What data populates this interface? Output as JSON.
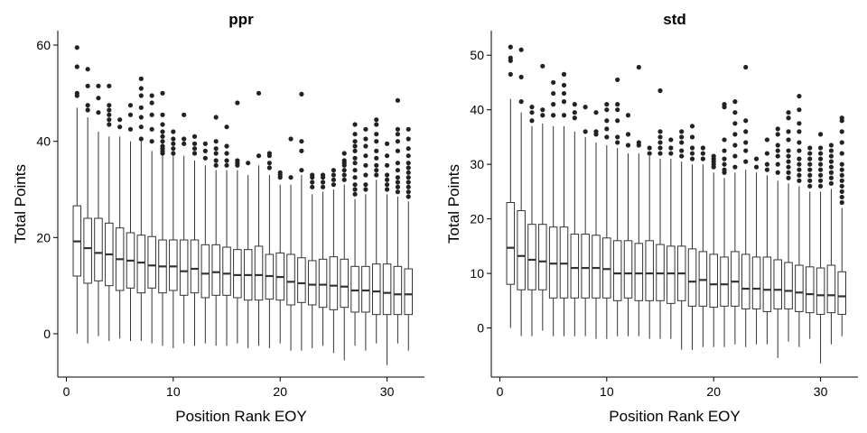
{
  "chart_data": [
    {
      "type": "boxplot",
      "title": "ppr",
      "xlabel": "Position Rank EOY",
      "ylabel": "Total Points",
      "xlim": [
        -0.8,
        33.5
      ],
      "ylim": [
        -9,
        63
      ],
      "xticks": [
        "0",
        "10",
        "20",
        "30"
      ],
      "xtick_values": [
        0,
        10,
        20,
        30
      ],
      "yticks": [
        "0",
        "20",
        "40",
        "60"
      ],
      "ytick_values": [
        0,
        20,
        40,
        60
      ],
      "grid": false,
      "boxes": [
        {
          "x": 1,
          "min": 0,
          "q1": 12,
          "median": 19.2,
          "q3": 26.6,
          "max": 47,
          "outliers": [
            49.5,
            50,
            55.5,
            59.5
          ]
        },
        {
          "x": 2,
          "min": -2,
          "q1": 10.5,
          "median": 17.8,
          "q3": 24,
          "max": 45,
          "outliers": [
            46.5,
            47.5,
            51.5,
            55
          ]
        },
        {
          "x": 3,
          "min": -0.5,
          "q1": 11,
          "median": 16.8,
          "q3": 24,
          "max": 42,
          "outliers": [
            46,
            49,
            51.5
          ]
        },
        {
          "x": 4,
          "min": -1.5,
          "q1": 10,
          "median": 16.5,
          "q3": 23,
          "max": 41,
          "outliers": [
            43.5,
            44.5,
            45.5,
            46.5,
            47.5,
            51.5
          ]
        },
        {
          "x": 5,
          "min": -1,
          "q1": 9,
          "median": 15.5,
          "q3": 22,
          "max": 41,
          "outliers": [
            43,
            44.5
          ]
        },
        {
          "x": 6,
          "min": -1.5,
          "q1": 9.5,
          "median": 15.2,
          "q3": 21,
          "max": 40,
          "outliers": [
            42.5,
            45.5,
            47.5
          ]
        },
        {
          "x": 7,
          "min": -1.5,
          "q1": 8.5,
          "median": 14.8,
          "q3": 20.5,
          "max": 40,
          "outliers": [
            40.5,
            43,
            45,
            47,
            49.5,
            51,
            53
          ]
        },
        {
          "x": 8,
          "min": -2,
          "q1": 9.5,
          "median": 14.2,
          "q3": 20.2,
          "max": 38,
          "outliers": [
            40,
            42.5,
            45.5,
            48,
            49.5
          ]
        },
        {
          "x": 9,
          "min": -2.5,
          "q1": 8.5,
          "median": 14,
          "q3": 19.5,
          "max": 37,
          "outliers": [
            37.5,
            38,
            38.5,
            39,
            40,
            41,
            42,
            43.5,
            45.5,
            50
          ]
        },
        {
          "x": 10,
          "min": -3,
          "q1": 9,
          "median": 14,
          "q3": 19.5,
          "max": 37,
          "outliers": [
            37.5,
            38.5,
            39.5,
            40.5,
            42
          ]
        },
        {
          "x": 11,
          "min": -2,
          "q1": 8,
          "median": 13,
          "q3": 19.5,
          "max": 37,
          "outliers": [
            39.5,
            40.5,
            45.5
          ]
        },
        {
          "x": 12,
          "min": -2.5,
          "q1": 8.5,
          "median": 13.5,
          "q3": 19.5,
          "max": 36,
          "outliers": [
            37.5,
            38.5,
            39.5,
            41
          ]
        },
        {
          "x": 13,
          "min": -2,
          "q1": 7.5,
          "median": 12.5,
          "q3": 18.5,
          "max": 35,
          "outliers": [
            36.5,
            38,
            39.5
          ]
        },
        {
          "x": 14,
          "min": -2.5,
          "q1": 8,
          "median": 12.8,
          "q3": 18.5,
          "max": 34,
          "outliers": [
            35,
            36,
            37.5,
            38.5,
            40,
            45
          ]
        },
        {
          "x": 15,
          "min": -2.5,
          "q1": 8,
          "median": 12.5,
          "q3": 18,
          "max": 34,
          "outliers": [
            35,
            36,
            37.5,
            39,
            43
          ]
        },
        {
          "x": 16,
          "min": -2,
          "q1": 7.5,
          "median": 12.2,
          "q3": 17.5,
          "max": 34,
          "outliers": [
            35,
            35.5,
            36,
            48
          ]
        },
        {
          "x": 17,
          "min": -3,
          "q1": 7,
          "median": 12.2,
          "q3": 17.5,
          "max": 33,
          "outliers": [
            35.5
          ]
        },
        {
          "x": 18,
          "min": -2.5,
          "q1": 7,
          "median": 12.2,
          "q3": 18.2,
          "max": 35,
          "outliers": [
            37,
            50
          ]
        },
        {
          "x": 19,
          "min": -3,
          "q1": 7.2,
          "median": 12,
          "q3": 16.5,
          "max": 33,
          "outliers": [
            34.5,
            35.5,
            37,
            37.5
          ]
        },
        {
          "x": 20,
          "min": -2,
          "q1": 7,
          "median": 11.8,
          "q3": 16.8,
          "max": 31,
          "outliers": [
            32.5,
            33,
            33.5
          ]
        },
        {
          "x": 21,
          "min": -3.5,
          "q1": 6,
          "median": 10.8,
          "q3": 16.5,
          "max": 31,
          "outliers": [
            32.5,
            40.5
          ]
        },
        {
          "x": 22,
          "min": -3.5,
          "q1": 6.5,
          "median": 10.5,
          "q3": 15.8,
          "max": 33,
          "outliers": [
            34,
            38,
            40,
            49.8
          ]
        },
        {
          "x": 23,
          "min": -3,
          "q1": 6,
          "median": 10.2,
          "q3": 15.2,
          "max": 29,
          "outliers": [
            30.5,
            31.5,
            32.5,
            33
          ]
        },
        {
          "x": 24,
          "min": -2.5,
          "q1": 5.5,
          "median": 10.2,
          "q3": 15.5,
          "max": 29.5,
          "outliers": [
            30.5,
            31.5,
            32.5,
            33
          ]
        },
        {
          "x": 25,
          "min": -4,
          "q1": 5,
          "median": 10,
          "q3": 16,
          "max": 30,
          "outliers": [
            31,
            32,
            33,
            34
          ]
        },
        {
          "x": 26,
          "min": -5.5,
          "q1": 5.5,
          "median": 9.8,
          "q3": 15.5,
          "max": 31,
          "outliers": [
            32,
            33,
            34,
            35,
            35.5,
            36,
            37.5
          ]
        },
        {
          "x": 27,
          "min": -2.5,
          "q1": 4.5,
          "median": 9,
          "q3": 14,
          "max": 28,
          "outliers": [
            29,
            30,
            31,
            32.5,
            34,
            35.5,
            36.5,
            38,
            39,
            40,
            41.5,
            43.5
          ]
        },
        {
          "x": 28,
          "min": -3.5,
          "q1": 4.5,
          "median": 9,
          "q3": 14,
          "max": 29,
          "outliers": [
            30,
            31,
            33,
            35,
            37,
            39,
            40.5,
            42.5
          ]
        },
        {
          "x": 29,
          "min": -2,
          "q1": 4,
          "median": 8.8,
          "q3": 14.5,
          "max": 32,
          "outliers": [
            33,
            34,
            35,
            36.5,
            38,
            40,
            41.5,
            43.5,
            44.5
          ]
        },
        {
          "x": 30,
          "min": -6.5,
          "q1": 4,
          "median": 8.5,
          "q3": 14.5,
          "max": 29,
          "outliers": [
            30,
            31,
            32,
            33,
            35,
            37,
            39.5
          ]
        },
        {
          "x": 31,
          "min": -2,
          "q1": 4,
          "median": 8.2,
          "q3": 14,
          "max": 28.5,
          "outliers": [
            29.5,
            30.5,
            31.5,
            32.5,
            34,
            35.5,
            38,
            40,
            41.5,
            42.5,
            48.5
          ]
        },
        {
          "x": 32,
          "min": -3.5,
          "q1": 4,
          "median": 8.2,
          "q3": 13.5,
          "max": 27.5,
          "outliers": [
            28.5,
            29.5,
            30.5,
            31.5,
            32.5,
            33.5,
            34.5,
            35.5,
            37,
            38.5,
            40.5,
            42.5
          ]
        }
      ]
    },
    {
      "type": "boxplot",
      "title": "std",
      "xlabel": "Position Rank EOY",
      "ylabel": "Total Points",
      "xlim": [
        -0.8,
        33.5
      ],
      "ylim": [
        -9,
        54.5
      ],
      "xticks": [
        "0",
        "10",
        "20",
        "30"
      ],
      "xtick_values": [
        0,
        10,
        20,
        30
      ],
      "yticks": [
        "0",
        "10",
        "20",
        "30",
        "40",
        "50"
      ],
      "ytick_values": [
        0,
        10,
        20,
        30,
        40,
        50
      ],
      "grid": false,
      "boxes": [
        {
          "x": 1,
          "min": 0,
          "q1": 8,
          "median": 14.7,
          "q3": 23,
          "max": 42,
          "outliers": [
            46.5,
            49,
            49.5,
            51.5
          ]
        },
        {
          "x": 2,
          "min": -1.5,
          "q1": 7,
          "median": 13.2,
          "q3": 21.5,
          "max": 39.5,
          "outliers": [
            41.5,
            46,
            51
          ]
        },
        {
          "x": 3,
          "min": -1.5,
          "q1": 7,
          "median": 12.5,
          "q3": 19,
          "max": 37,
          "outliers": [
            38,
            39.5,
            40.5
          ]
        },
        {
          "x": 4,
          "min": -0.5,
          "q1": 7,
          "median": 12.2,
          "q3": 19,
          "max": 37.5,
          "outliers": [
            39,
            40,
            48
          ]
        },
        {
          "x": 5,
          "min": -1.5,
          "q1": 5.5,
          "median": 11.8,
          "q3": 18.5,
          "max": 37,
          "outliers": [
            39,
            41,
            43,
            45
          ]
        },
        {
          "x": 6,
          "min": -1.5,
          "q1": 5.5,
          "median": 11.8,
          "q3": 18.5,
          "max": 37,
          "outliers": [
            39,
            41.5,
            43,
            44.5,
            46.5
          ]
        },
        {
          "x": 7,
          "min": -1.5,
          "q1": 5.5,
          "median": 11,
          "q3": 17.2,
          "max": 36,
          "outliers": [
            38.5,
            39.5,
            41
          ]
        },
        {
          "x": 8,
          "min": -1.5,
          "q1": 5.5,
          "median": 11,
          "q3": 17.2,
          "max": 35,
          "outliers": [
            36,
            40.5
          ]
        },
        {
          "x": 9,
          "min": -2,
          "q1": 5.5,
          "median": 11,
          "q3": 17,
          "max": 34,
          "outliers": [
            35.5,
            36,
            39.5
          ]
        },
        {
          "x": 10,
          "min": -2,
          "q1": 5.5,
          "median": 10.8,
          "q3": 16.5,
          "max": 33.5,
          "outliers": [
            35,
            36.5,
            38,
            40,
            41
          ]
        },
        {
          "x": 11,
          "min": -1.5,
          "q1": 5,
          "median": 10,
          "q3": 16,
          "max": 33,
          "outliers": [
            34,
            35,
            38,
            40,
            41,
            45.5
          ]
        },
        {
          "x": 12,
          "min": -1.5,
          "q1": 5.5,
          "median": 10,
          "q3": 16,
          "max": 32,
          "outliers": [
            33.5,
            35.5,
            39
          ]
        },
        {
          "x": 13,
          "min": -1.5,
          "q1": 5,
          "median": 10,
          "q3": 15.5,
          "max": 32,
          "outliers": [
            33.5,
            34,
            47.8
          ]
        },
        {
          "x": 14,
          "min": -2,
          "q1": 5,
          "median": 10,
          "q3": 16,
          "max": 31.5,
          "outliers": [
            32,
            33
          ]
        },
        {
          "x": 15,
          "min": -2,
          "q1": 5,
          "median": 10,
          "q3": 15.3,
          "max": 31,
          "outliers": [
            32,
            33,
            34,
            35,
            36,
            43.5
          ]
        },
        {
          "x": 16,
          "min": -2,
          "q1": 4.5,
          "median": 10,
          "q3": 15,
          "max": 31,
          "outliers": [
            32,
            33,
            34.5
          ]
        },
        {
          "x": 17,
          "min": -4,
          "q1": 5,
          "median": 10,
          "q3": 15,
          "max": 30.5,
          "outliers": [
            31.5,
            32.5,
            34,
            35,
            36
          ]
        },
        {
          "x": 18,
          "min": -4,
          "q1": 4,
          "median": 8.5,
          "q3": 14.5,
          "max": 30,
          "outliers": [
            31,
            32,
            33,
            35,
            37
          ]
        },
        {
          "x": 19,
          "min": -3.5,
          "q1": 4,
          "median": 8.8,
          "q3": 14,
          "max": 30,
          "outliers": [
            31,
            32,
            33
          ]
        },
        {
          "x": 20,
          "min": -3.5,
          "q1": 3.8,
          "median": 8,
          "q3": 13.5,
          "max": 28.5,
          "outliers": [
            29.5,
            30,
            30.5,
            31,
            31.5
          ]
        },
        {
          "x": 21,
          "min": -3.5,
          "q1": 4,
          "median": 8,
          "q3": 13,
          "max": 27.5,
          "outliers": [
            28.5,
            29,
            30,
            31,
            32.5,
            34.5,
            40.5,
            41
          ]
        },
        {
          "x": 22,
          "min": -3,
          "q1": 4,
          "median": 8.5,
          "q3": 14,
          "max": 28.5,
          "outliers": [
            29.5,
            31.5,
            33.5,
            35.5,
            37.5,
            39.5,
            41.5
          ]
        },
        {
          "x": 23,
          "min": -3.5,
          "q1": 3.5,
          "median": 7.2,
          "q3": 13.5,
          "max": 29,
          "outliers": [
            30.5,
            32.5,
            34,
            36,
            38,
            47.8
          ]
        },
        {
          "x": 24,
          "min": -3,
          "q1": 3.5,
          "median": 7.2,
          "q3": 13,
          "max": 28.5,
          "outliers": [
            29.5,
            31
          ]
        },
        {
          "x": 25,
          "min": -3,
          "q1": 3,
          "median": 7,
          "q3": 13,
          "max": 28,
          "outliers": [
            29,
            30,
            32,
            34.5
          ]
        },
        {
          "x": 26,
          "min": -5.5,
          "q1": 3.5,
          "median": 7,
          "q3": 12.5,
          "max": 27,
          "outliers": [
            28.5,
            30,
            31.5,
            32.5,
            33.5,
            35.5,
            36.5
          ]
        },
        {
          "x": 27,
          "min": -2.5,
          "q1": 3.5,
          "median": 6.8,
          "q3": 12,
          "max": 26.5,
          "outliers": [
            27.5,
            28.5,
            29.5,
            30.5,
            31.5,
            32.5,
            34.5,
            36,
            38.5,
            39.5
          ]
        },
        {
          "x": 28,
          "min": -3.5,
          "q1": 3,
          "median": 6.5,
          "q3": 11.5,
          "max": 26,
          "outliers": [
            27,
            28,
            29,
            30,
            31,
            32.5,
            34,
            36,
            37.5,
            40,
            42.5
          ]
        },
        {
          "x": 29,
          "min": -2,
          "q1": 2.8,
          "median": 6.2,
          "q3": 11.2,
          "max": 25,
          "outliers": [
            26,
            27,
            28,
            29,
            30,
            31,
            32,
            33
          ]
        },
        {
          "x": 30,
          "min": -6.5,
          "q1": 2.5,
          "median": 6,
          "q3": 11,
          "max": 25,
          "outliers": [
            26,
            27,
            28,
            29,
            30,
            31,
            32,
            33,
            35.5
          ]
        },
        {
          "x": 31,
          "min": -3,
          "q1": 2.8,
          "median": 6,
          "q3": 11.5,
          "max": 25.5,
          "outliers": [
            26.5,
            27.5,
            28.5,
            29.5,
            30.5,
            31.5,
            32.5,
            33.5
          ]
        },
        {
          "x": 32,
          "min": -1.5,
          "q1": 2.5,
          "median": 5.8,
          "q3": 10.3,
          "max": 22,
          "outliers": [
            23,
            24,
            25,
            26,
            27,
            28,
            29,
            30,
            32,
            34,
            36,
            38,
            38.5
          ]
        }
      ]
    }
  ]
}
